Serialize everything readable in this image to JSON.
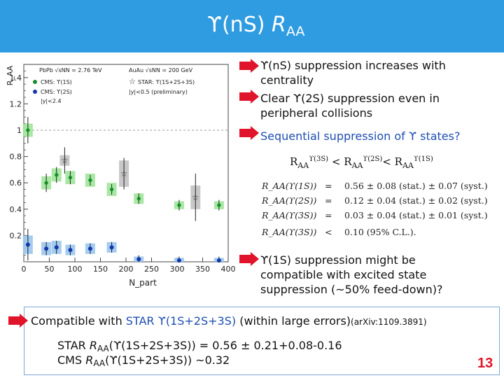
{
  "title": {
    "symbol": "ϒ(n",
    "rest": "S) ",
    "r": "R",
    "sub": "AA"
  },
  "plot": {
    "y_axis_label": "R_AA",
    "x_axis_label": "N_part",
    "legend": {
      "line1": "PbPb √sNN = 2.76 TeV",
      "line1b": "AuAu √sNN = 200 GeV",
      "cms1": "CMS: ϒ(1S)",
      "cms2": "CMS: ϒ(2S)",
      "star": "STAR: ϒ(1S+2S+3S)",
      "cut1": "|y|<2.4",
      "cut2": "|y|<0.5 (preliminary)"
    },
    "x_ticks": [
      "0",
      "50",
      "100",
      "150",
      "200",
      "250",
      "300",
      "350",
      "400"
    ],
    "y_ticks": [
      "0.2",
      "0.4",
      "0.6",
      "0.8",
      "1",
      "1.2",
      "1.4"
    ],
    "colors": {
      "green_box": "#9fe49a",
      "blue_box": "#9ac6ee",
      "gray_box": "#c2c2c2",
      "green_pt": "#1a8a2a",
      "blue_pt": "#1436a8"
    },
    "cms_1s": [
      {
        "x": 8,
        "y": 1.0,
        "err": 0.1,
        "box": 0.05
      },
      {
        "x": 44,
        "y": 0.6,
        "err": 0.07,
        "box": 0.05
      },
      {
        "x": 64,
        "y": 0.66,
        "err": 0.06,
        "box": 0.05
      },
      {
        "x": 91,
        "y": 0.64,
        "err": 0.05,
        "box": 0.05
      },
      {
        "x": 130,
        "y": 0.62,
        "err": 0.04,
        "box": 0.05
      },
      {
        "x": 172,
        "y": 0.55,
        "err": 0.04,
        "box": 0.05
      },
      {
        "x": 225,
        "y": 0.48,
        "err": 0.04,
        "box": 0.04
      },
      {
        "x": 304,
        "y": 0.43,
        "err": 0.04,
        "box": 0.03
      },
      {
        "x": 382,
        "y": 0.43,
        "err": 0.04,
        "box": 0.03
      }
    ],
    "cms_2s": [
      {
        "x": 8,
        "y": 0.13,
        "err": 0.12,
        "box": 0.07
      },
      {
        "x": 44,
        "y": 0.1,
        "err": 0.05,
        "box": 0.05
      },
      {
        "x": 64,
        "y": 0.11,
        "err": 0.05,
        "box": 0.05
      },
      {
        "x": 91,
        "y": 0.09,
        "err": 0.04,
        "box": 0.04
      },
      {
        "x": 130,
        "y": 0.1,
        "err": 0.04,
        "box": 0.04
      },
      {
        "x": 172,
        "y": 0.11,
        "err": 0.04,
        "box": 0.04
      },
      {
        "x": 225,
        "y": 0.02,
        "err": 0.03,
        "box": 0.02
      },
      {
        "x": 304,
        "y": 0.01,
        "err": 0.03,
        "box": 0.02
      },
      {
        "x": 382,
        "y": 0.01,
        "err": 0.03,
        "box": 0.02
      }
    ],
    "star": [
      {
        "x": 80,
        "y": 0.77,
        "err": 0.1,
        "box": 0.04
      },
      {
        "x": 196,
        "y": 0.67,
        "err": 0.12,
        "box": 0.1
      },
      {
        "x": 336,
        "y": 0.49,
        "err": 0.18,
        "box": 0.09
      }
    ]
  },
  "bullets": [
    {
      "text1": "ϒ(nS) suppression increases with",
      "text2": "centrality"
    },
    {
      "text1": "Clear ϒ(2S) suppression even in",
      "text2": "peripheral collisions"
    },
    {
      "text1": "Sequential suppression of ϒ states?"
    }
  ],
  "ratio": {
    "r": "R",
    "aa": "AA",
    "s3": "ϒ(3S)",
    "s2": "ϒ(2S)",
    "s1": "ϒ(1S)",
    "lt": "<"
  },
  "results": [
    {
      "label": "R_AA(ϒ(1S))",
      "rel": "=",
      "value": "0.56 ± 0.08 (stat.) ± 0.07 (syst.)"
    },
    {
      "label": "R_AA(ϒ(2S))",
      "rel": "=",
      "value": "0.12 ± 0.04 (stat.) ± 0.02 (syst.)"
    },
    {
      "label": "R_AA(ϒ(3S))",
      "rel": "=",
      "value": "0.03 ± 0.04 (stat.) ± 0.01 (syst.)"
    },
    {
      "label": "R_AA(ϒ(3S))",
      "rel": "<",
      "value": "0.10     (95% C.L.)."
    }
  ],
  "bullet4": {
    "text1": "ϒ(1S) suppression might be",
    "text2": "compatible with excited state",
    "text3": "suppression (~50% feed-down)?"
  },
  "bottom": {
    "prefix": "Compatible with ",
    "star_label": "STAR ϒ(1S+2S+3S)",
    "suffix": " (within large errors)",
    "arxiv": "(arXiv:1109.3891)",
    "star_line": {
      "a": "STAR ",
      "r": "R",
      "aa": "AA",
      "b": "(ϒ(1S+2S+3S)) = 0.56 ± 0.21+0.08-0.16"
    },
    "cms_line": {
      "a": "CMS ",
      "r": "R",
      "aa": "AA",
      "b": "(ϒ(1S+2S+3S)) ~0.32"
    }
  },
  "page_number": "13"
}
